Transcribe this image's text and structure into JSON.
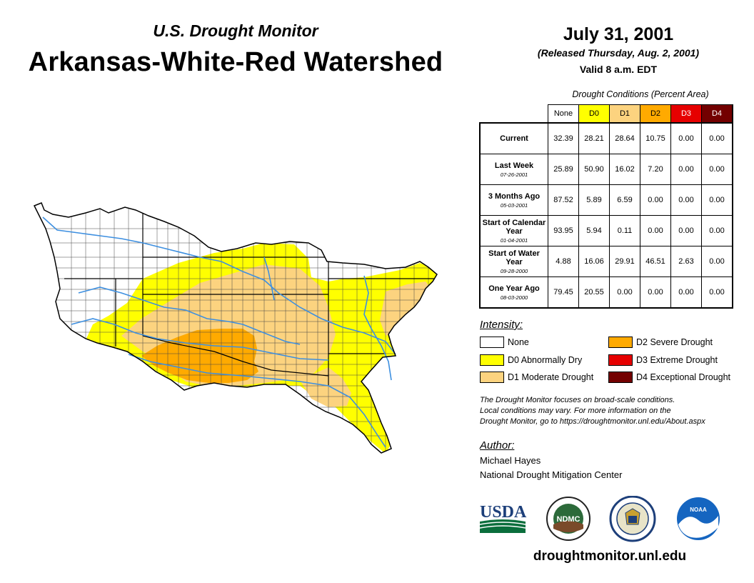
{
  "header": {
    "subtitle": "U.S. Drought Monitor",
    "title": "Arkansas-White-Red Watershed",
    "date": "July 31, 2001",
    "released": "(Released Thursday, Aug. 2, 2001)",
    "valid": "Valid 8 a.m. EDT"
  },
  "table": {
    "caption": "Drought Conditions (Percent Area)",
    "columns": [
      "None",
      "D0",
      "D1",
      "D2",
      "D3",
      "D4"
    ],
    "rows": [
      {
        "label": "Current",
        "date": "",
        "values": [
          "32.39",
          "28.21",
          "28.64",
          "10.75",
          "0.00",
          "0.00"
        ]
      },
      {
        "label": "Last Week",
        "date": "07-26-2001",
        "values": [
          "25.89",
          "50.90",
          "16.02",
          "7.20",
          "0.00",
          "0.00"
        ]
      },
      {
        "label": "3 Months Ago",
        "date": "05-03-2001",
        "values": [
          "87.52",
          "5.89",
          "6.59",
          "0.00",
          "0.00",
          "0.00"
        ]
      },
      {
        "label": "Start of Calendar Year",
        "date": "01-04-2001",
        "values": [
          "93.95",
          "5.94",
          "0.11",
          "0.00",
          "0.00",
          "0.00"
        ]
      },
      {
        "label": "Start of Water Year",
        "date": "09-28-2000",
        "values": [
          "4.88",
          "16.06",
          "29.91",
          "46.51",
          "2.63",
          "0.00"
        ]
      },
      {
        "label": "One Year Ago",
        "date": "08-03-2000",
        "values": [
          "79.45",
          "20.55",
          "0.00",
          "0.00",
          "0.00",
          "0.00"
        ]
      }
    ]
  },
  "colors": {
    "none": "#ffffff",
    "d0": "#ffff00",
    "d1": "#fcd37f",
    "d2": "#ffaa00",
    "d3": "#e60000",
    "d4": "#730000",
    "river": "#3d8fe0"
  },
  "legend": {
    "label": "Intensity:",
    "items": {
      "none": "None",
      "d0": "D0 Abnormally Dry",
      "d1": "D1 Moderate Drought",
      "d2": "D2 Severe Drought",
      "d3": "D3 Extreme Drought",
      "d4": "D4 Exceptional Drought"
    }
  },
  "note": {
    "line1": "The Drought Monitor focuses on broad-scale conditions.",
    "line2": "Local conditions may vary. For more information on the",
    "line3": "Drought Monitor, go to https://droughtmonitor.unl.edu/About.aspx"
  },
  "author": {
    "label": "Author:",
    "name": "Michael Hayes",
    "org": "National Drought Mitigation Center"
  },
  "logos": {
    "usda": "USDA",
    "ndmc": "NDMC",
    "noaa": "NOAA"
  },
  "footer": {
    "site": "droughtmonitor.unl.edu"
  }
}
